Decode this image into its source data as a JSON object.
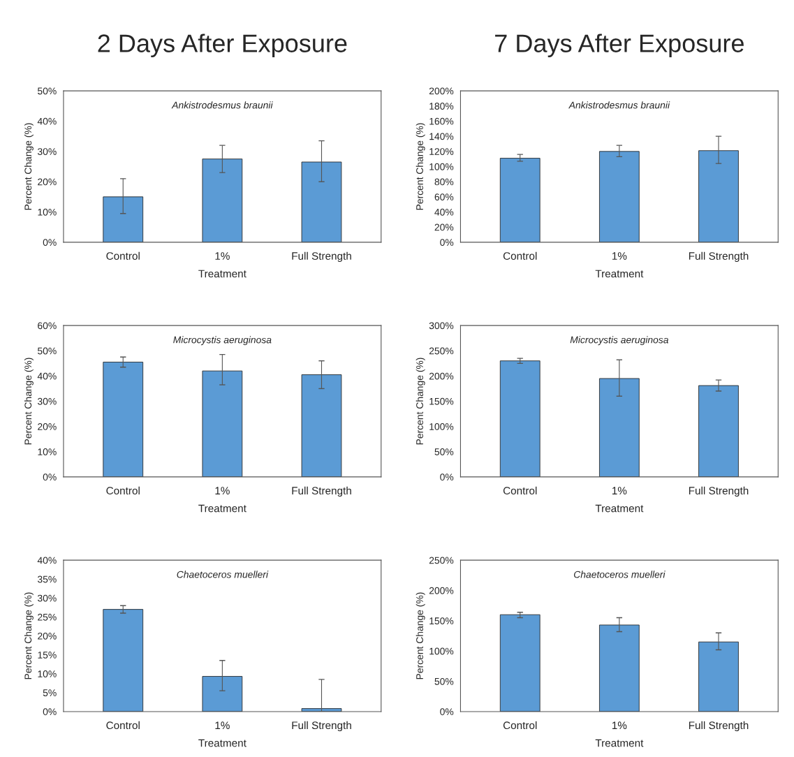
{
  "chart_data": [
    {
      "type": "bar",
      "title": "2 Days After Exposure",
      "annotations": [
        "Ankistrodesmus braunii"
      ],
      "xlabel": "Treatment",
      "ylabel": "Percent Change (%)",
      "categories": [
        "Control",
        "1%",
        "Full Strength"
      ],
      "values": [
        15,
        27.5,
        26.5
      ],
      "errors": [
        [
          9.5,
          21
        ],
        [
          23,
          32
        ],
        [
          20,
          33.5
        ]
      ],
      "color": "#5b9bd5",
      "ylim": [
        0,
        50
      ],
      "yticks": [
        {
          "value": 0,
          "label": "0%"
        },
        {
          "value": 10,
          "label": "10%"
        },
        {
          "value": 20,
          "label": "20%"
        },
        {
          "value": 30,
          "label": "30%"
        },
        {
          "value": 40,
          "label": "40%"
        },
        {
          "value": 50,
          "label": "50%"
        }
      ],
      "grid": false,
      "legend": false
    },
    {
      "type": "bar",
      "title": "7 Days After Exposure",
      "annotations": [
        "Ankistrodesmus braunii"
      ],
      "xlabel": "Treatment",
      "ylabel": "Percent Change (%)",
      "categories": [
        "Control",
        "1%",
        "Full Strength"
      ],
      "values": [
        111,
        120,
        121
      ],
      "errors": [
        [
          107,
          116
        ],
        [
          113,
          128
        ],
        [
          104,
          140
        ]
      ],
      "color": "#5b9bd5",
      "ylim": [
        0,
        200
      ],
      "yticks": [
        {
          "value": 0,
          "label": "0%"
        },
        {
          "value": 20,
          "label": "20%"
        },
        {
          "value": 40,
          "label": "40%"
        },
        {
          "value": 60,
          "label": "60%"
        },
        {
          "value": 80,
          "label": "80%"
        },
        {
          "value": 100,
          "label": "100%"
        },
        {
          "value": 120,
          "label": "120%"
        },
        {
          "value": 140,
          "label": "140%"
        },
        {
          "value": 160,
          "label": "160%"
        },
        {
          "value": 180,
          "label": "180%"
        },
        {
          "value": 200,
          "label": "200%"
        }
      ],
      "grid": false,
      "legend": false
    },
    {
      "type": "bar",
      "annotations": [
        "Microcystis aeruginosa"
      ],
      "xlabel": "Treatment",
      "ylabel": "Percent Change (%)",
      "categories": [
        "Control",
        "1%",
        "Full Strength"
      ],
      "values": [
        45.5,
        42,
        40.5
      ],
      "errors": [
        [
          43.5,
          47.5
        ],
        [
          36.5,
          48.5
        ],
        [
          35,
          46
        ]
      ],
      "color": "#5b9bd5",
      "ylim": [
        0,
        60
      ],
      "yticks": [
        {
          "value": 0,
          "label": "0%"
        },
        {
          "value": 10,
          "label": "10%"
        },
        {
          "value": 20,
          "label": "20%"
        },
        {
          "value": 30,
          "label": "30%"
        },
        {
          "value": 40,
          "label": "40%"
        },
        {
          "value": 50,
          "label": "50%"
        },
        {
          "value": 60,
          "label": "60%"
        }
      ],
      "grid": false,
      "legend": false
    },
    {
      "type": "bar",
      "annotations": [
        "Microcystis aeruginosa"
      ],
      "xlabel": "Treatment",
      "ylabel": "Percent Change (%)",
      "categories": [
        "Control",
        "1%",
        "Full Strength"
      ],
      "values": [
        230,
        195,
        181
      ],
      "errors": [
        [
          225,
          235
        ],
        [
          160,
          232
        ],
        [
          170,
          192
        ]
      ],
      "color": "#5b9bd5",
      "ylim": [
        0,
        300
      ],
      "yticks": [
        {
          "value": 0,
          "label": "0%"
        },
        {
          "value": 50,
          "label": "50%"
        },
        {
          "value": 100,
          "label": "100%"
        },
        {
          "value": 150,
          "label": "150%"
        },
        {
          "value": 200,
          "label": "200%"
        },
        {
          "value": 250,
          "label": "250%"
        },
        {
          "value": 300,
          "label": "300%"
        }
      ],
      "grid": false,
      "legend": false
    },
    {
      "type": "bar",
      "annotations": [
        "Chaetoceros muelleri"
      ],
      "xlabel": "Treatment",
      "ylabel": "Percent Change (%)",
      "categories": [
        "Control",
        "1%",
        "Full Strength"
      ],
      "values": [
        27,
        9.3,
        0.8
      ],
      "errors": [
        [
          26,
          28
        ],
        [
          5.5,
          13.5
        ],
        [
          0,
          8.5
        ]
      ],
      "color": "#5b9bd5",
      "ylim": [
        0,
        40
      ],
      "yticks": [
        {
          "value": 0,
          "label": "0%"
        },
        {
          "value": 5,
          "label": "5%"
        },
        {
          "value": 10,
          "label": "10%"
        },
        {
          "value": 15,
          "label": "15%"
        },
        {
          "value": 20,
          "label": "20%"
        },
        {
          "value": 25,
          "label": "25%"
        },
        {
          "value": 30,
          "label": "30%"
        },
        {
          "value": 35,
          "label": "35%"
        },
        {
          "value": 40,
          "label": "40%"
        }
      ],
      "grid": false,
      "legend": false
    },
    {
      "type": "bar",
      "annotations": [
        "Chaetoceros muelleri"
      ],
      "xlabel": "Treatment",
      "ylabel": "Percent Change (%)",
      "categories": [
        "Control",
        "1%",
        "Full Strength"
      ],
      "values": [
        160,
        143,
        115
      ],
      "errors": [
        [
          155,
          164
        ],
        [
          132,
          155
        ],
        [
          102,
          130
        ]
      ],
      "color": "#5b9bd5",
      "ylim": [
        0,
        250
      ],
      "yticks": [
        {
          "value": 0,
          "label": "0%"
        },
        {
          "value": 50,
          "label": "50%"
        },
        {
          "value": 100,
          "label": "100%"
        },
        {
          "value": 150,
          "label": "150%"
        },
        {
          "value": 200,
          "label": "200%"
        },
        {
          "value": 250,
          "label": "250%"
        }
      ],
      "grid": false,
      "legend": false
    }
  ]
}
